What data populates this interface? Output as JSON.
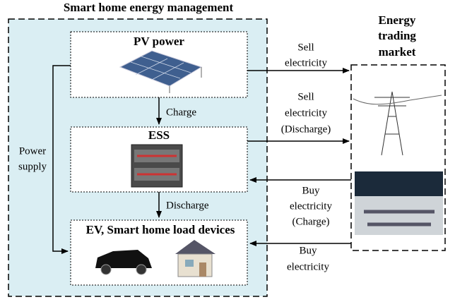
{
  "title": "Smart home energy management",
  "nodes": [
    {
      "label": "PV power"
    },
    {
      "label": "ESS"
    },
    {
      "label": "EV, Smart home load devices"
    },
    {
      "label": [
        "Energy",
        "trading",
        "market"
      ]
    }
  ],
  "edges": [
    {
      "label": "Charge"
    },
    {
      "label": "Discharge"
    },
    {
      "label": [
        "Power",
        "supply"
      ]
    },
    {
      "label": [
        "Sell",
        "electricity"
      ]
    },
    {
      "label": [
        "Sell",
        "electricity",
        "(Discharge)"
      ]
    },
    {
      "label": [
        "Buy",
        "electricity",
        "(Charge)"
      ]
    },
    {
      "label": [
        "Buy",
        "electricity"
      ]
    }
  ]
}
